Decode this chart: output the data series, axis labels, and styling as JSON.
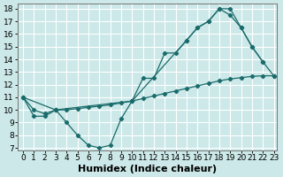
{
  "xlabel": "Humidex (Indice chaleur)",
  "background_color": "#cce8e8",
  "line_color": "#1a6b6b",
  "xlim_min": -0.5,
  "xlim_max": 23.3,
  "ylim_min": 6.8,
  "ylim_max": 18.4,
  "xticks": [
    0,
    1,
    2,
    3,
    4,
    5,
    6,
    7,
    8,
    9,
    10,
    11,
    12,
    13,
    14,
    15,
    16,
    17,
    18,
    19,
    20,
    21,
    22,
    23
  ],
  "yticks": [
    7,
    8,
    9,
    10,
    11,
    12,
    13,
    14,
    15,
    16,
    17,
    18
  ],
  "series1_x": [
    0,
    1,
    2,
    3,
    4,
    5,
    6,
    7,
    8,
    9,
    10,
    11,
    12,
    13,
    14,
    15,
    16,
    17,
    18,
    19,
    20,
    21,
    22
  ],
  "series1_y": [
    11,
    9.5,
    9.5,
    10,
    9,
    8,
    7.2,
    7,
    7.2,
    9.3,
    10.7,
    12.5,
    12.5,
    14.5,
    14.5,
    15.5,
    16.5,
    17,
    18,
    18,
    16.5,
    15,
    13.8
  ],
  "series2_x": [
    0,
    1,
    2,
    3,
    4,
    5,
    6,
    7,
    8,
    9,
    10,
    11,
    12,
    13,
    14,
    15,
    16,
    17,
    18,
    19,
    20,
    21,
    22,
    23
  ],
  "series2_y": [
    11,
    10.0,
    9.7,
    10,
    10,
    10.1,
    10.2,
    10.3,
    10.4,
    10.55,
    10.7,
    10.9,
    11.1,
    11.3,
    11.5,
    11.7,
    11.9,
    12.1,
    12.3,
    12.45,
    12.55,
    12.65,
    12.7,
    12.7
  ],
  "series3_x": [
    0,
    3,
    10,
    15,
    16,
    17,
    18,
    19,
    20,
    21,
    22,
    23
  ],
  "series3_y": [
    11,
    10,
    10.7,
    15.5,
    16.5,
    17,
    18,
    17.5,
    16.5,
    15,
    13.8,
    12.7
  ],
  "tick_fontsize": 6.5,
  "xlabel_fontsize": 8
}
